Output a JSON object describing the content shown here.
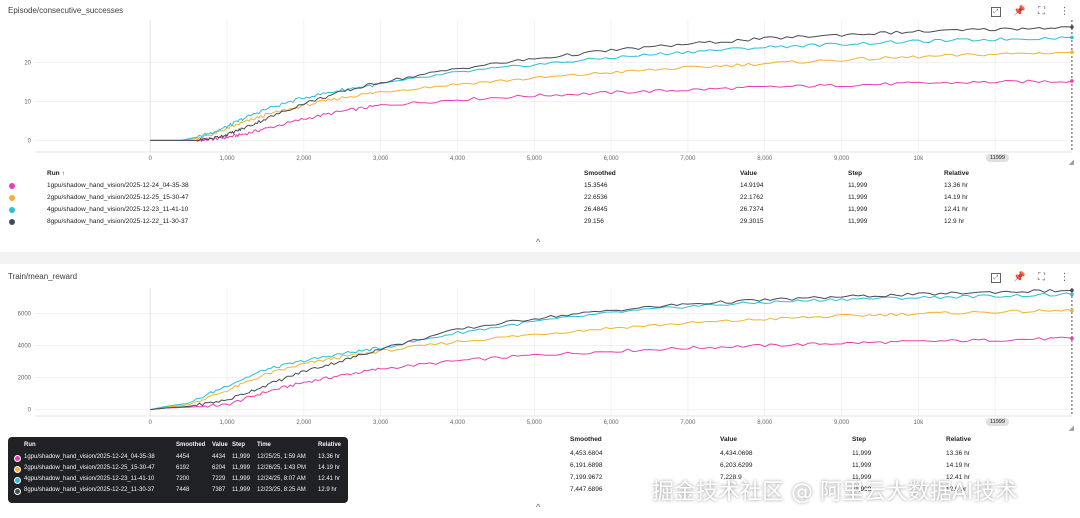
{
  "colors": {
    "series": [
      "#e83fb5",
      "#f2b233",
      "#27bfd9",
      "#474b55"
    ],
    "grid": "#e8eaed",
    "axis": "#dadce0",
    "text": "#202124"
  },
  "icons": [
    "fit-domain-icon",
    "pin-icon",
    "fullscreen-icon",
    "more-vert-icon"
  ],
  "panel1": {
    "title": "Episode/consecutive_successes",
    "step_badge": "11999",
    "collapse": "^",
    "table": {
      "headers": {
        "run": "Run ↑",
        "smoothed": "Smoothed",
        "value": "Value",
        "step": "Step",
        "relative": "Relative"
      },
      "rows": [
        {
          "run": "1gpu/shadow_hand_vision/2025-12-24_04-35-38",
          "smoothed": "15.3546",
          "value": "14.9194",
          "step": "11,999",
          "relative": "13.36 hr"
        },
        {
          "run": "2gpu/shadow_hand_vision/2025-12-25_15-30-47",
          "smoothed": "22.6536",
          "value": "22.1762",
          "step": "11,999",
          "relative": "14.19 hr"
        },
        {
          "run": "4gpu/shadow_hand_vision/2025-12-23_11-41-10",
          "smoothed": "26.4845",
          "value": "26.7374",
          "step": "11,999",
          "relative": "12.41 hr"
        },
        {
          "run": "8gpu/shadow_hand_vision/2025-12-22_11-30-37",
          "smoothed": "29.156",
          "value": "29.3015",
          "step": "11,999",
          "relative": "12.9 hr"
        }
      ]
    }
  },
  "panel2": {
    "title": "Train/mean_reward",
    "step_badge": "11999",
    "collapse": "^",
    "table": {
      "headers": {
        "smoothed": "Smoothed",
        "value": "Value",
        "step": "Step",
        "relative": "Relative"
      },
      "rows": [
        {
          "smoothed": "4,453.6804",
          "value": "4,434.0698",
          "step": "11,999",
          "relative": "13.36 hr"
        },
        {
          "smoothed": "6,191.6898",
          "value": "6,203.6299",
          "step": "11,999",
          "relative": "14.19 hr"
        },
        {
          "smoothed": "7,199.9672",
          "value": "7,228.9",
          "step": "11,999",
          "relative": "12.41 hr"
        },
        {
          "smoothed": "7,447.6896",
          "value": "",
          "step": "11,999",
          "relative": "12.9 hr"
        }
      ]
    },
    "tooltip": {
      "headers": {
        "run": "Run",
        "smoothed": "Smoothed",
        "value": "Value",
        "step": "Step",
        "time": "Time",
        "relative": "Relative"
      },
      "rows": [
        {
          "run": "1gpu/shadow_hand_vision/2025-12-24_04-35-38",
          "smoothed": "4454",
          "value": "4434",
          "step": "11,999",
          "time": "12/25/25, 1:59 AM",
          "relative": "13.36 hr"
        },
        {
          "run": "2gpu/shadow_hand_vision/2025-12-25_15-30-47",
          "smoothed": "6192",
          "value": "6204",
          "step": "11,999",
          "time": "12/26/25, 1:43 PM",
          "relative": "14.19 hr"
        },
        {
          "run": "4gpu/shadow_hand_vision/2025-12-23_11-41-10",
          "smoothed": "7200",
          "value": "7229",
          "step": "11,999",
          "time": "12/24/25, 8:07 AM",
          "relative": "12.41 hr"
        },
        {
          "run": "8gpu/shadow_hand_vision/2025-12-22_11-30-37",
          "smoothed": "7448",
          "value": "7387",
          "step": "11,999",
          "time": "12/23/25, 8:25 AM",
          "relative": "12.9 hr"
        }
      ]
    }
  },
  "watermark": "掘金技术社区 @ 阿里云大数据AI技术",
  "chart_data": [
    {
      "type": "line",
      "title": "Episode/consecutive_successes",
      "xlabel": "",
      "ylabel": "",
      "xlim": [
        -1500,
        12000
      ],
      "ylim": [
        -3,
        31
      ],
      "x_ticks": [
        0,
        1000,
        2000,
        3000,
        4000,
        5000,
        6000,
        7000,
        8000,
        9000,
        10000,
        11000
      ],
      "x_tick_labels": [
        "0",
        "1,000",
        "2,000",
        "3,000",
        "4,000",
        "5,000",
        "6,000",
        "7,000",
        "8,000",
        "9,000",
        "10k",
        "11k"
      ],
      "y_ticks": [
        0,
        10,
        20
      ],
      "grid": true,
      "x": [
        0,
        400,
        600,
        800,
        1000,
        1200,
        1500,
        2000,
        2500,
        3000,
        4000,
        5000,
        6000,
        7000,
        8000,
        9000,
        10000,
        11000,
        11999
      ],
      "series": [
        {
          "name": "1gpu/shadow_hand_vision/2025-12-24_04-35-38",
          "values": [
            0,
            0,
            0,
            0.3,
            0.8,
            1.5,
            3,
            5.5,
            7.5,
            9,
            10.5,
            11.5,
            12.3,
            13,
            13.7,
            14.2,
            14.7,
            15,
            15.3
          ]
        },
        {
          "name": "2gpu/shadow_hand_vision/2025-12-25_15-30-47",
          "values": [
            0,
            0,
            0.5,
            1.5,
            3,
            4.5,
            6.5,
            9,
            11,
            12.5,
            14.5,
            16,
            17.5,
            18.7,
            19.8,
            20.7,
            21.5,
            22.2,
            22.7
          ]
        },
        {
          "name": "4gpu/shadow_hand_vision/2025-12-23_11-41-10",
          "values": [
            0,
            0,
            0.8,
            2,
            3.5,
            5.5,
            8,
            11,
            13,
            14.5,
            17.5,
            19.5,
            21.3,
            22.8,
            24,
            24.8,
            25.5,
            26,
            26.5
          ]
        },
        {
          "name": "8gpu/shadow_hand_vision/2025-12-22_11-30-37",
          "values": [
            0,
            0,
            0,
            0.5,
            1.5,
            3,
            5.5,
            9.5,
            12.5,
            15,
            18.5,
            21,
            23.2,
            24.8,
            26.2,
            27.2,
            28,
            28.6,
            29.2
          ]
        }
      ]
    },
    {
      "type": "line",
      "title": "Train/mean_reward",
      "xlabel": "",
      "ylabel": "",
      "xlim": [
        -1500,
        12000
      ],
      "ylim": [
        -400,
        7600
      ],
      "x_ticks": [
        0,
        1000,
        2000,
        3000,
        4000,
        5000,
        6000,
        7000,
        8000,
        9000,
        10000,
        11000
      ],
      "x_tick_labels": [
        "0",
        "1,000",
        "2,000",
        "3,000",
        "4,000",
        "5,000",
        "6,000",
        "7,000",
        "8,000",
        "9,000",
        "10k",
        "11k"
      ],
      "y_ticks": [
        0,
        2000,
        4000,
        6000
      ],
      "grid": true,
      "x": [
        0,
        200,
        500,
        1000,
        1500,
        2000,
        2500,
        3000,
        4000,
        5000,
        6000,
        7000,
        8000,
        9000,
        10000,
        11000,
        11999
      ],
      "series": [
        {
          "name": "1gpu/shadow_hand_vision/2025-12-24_04-35-38",
          "values": [
            0,
            100,
            150,
            300,
            1100,
            1700,
            2150,
            2550,
            3050,
            3400,
            3650,
            3850,
            4000,
            4150,
            4250,
            4350,
            4454
          ]
        },
        {
          "name": "2gpu/shadow_hand_vision/2025-12-25_15-30-47",
          "values": [
            0,
            150,
            300,
            1200,
            2200,
            2850,
            3300,
            3650,
            4250,
            4700,
            5100,
            5400,
            5650,
            5850,
            6000,
            6100,
            6192
          ]
        },
        {
          "name": "4gpu/shadow_hand_vision/2025-12-23_11-41-10",
          "values": [
            0,
            200,
            400,
            1500,
            2500,
            3050,
            3500,
            3850,
            4800,
            5500,
            6050,
            6450,
            6700,
            6900,
            7000,
            7100,
            7200
          ]
        },
        {
          "name": "8gpu/shadow_hand_vision/2025-12-22_11-30-37",
          "values": [
            0,
            100,
            200,
            600,
            1500,
            2400,
            3050,
            3800,
            5000,
            5700,
            6200,
            6600,
            6850,
            7050,
            7200,
            7350,
            7448
          ]
        }
      ]
    }
  ]
}
